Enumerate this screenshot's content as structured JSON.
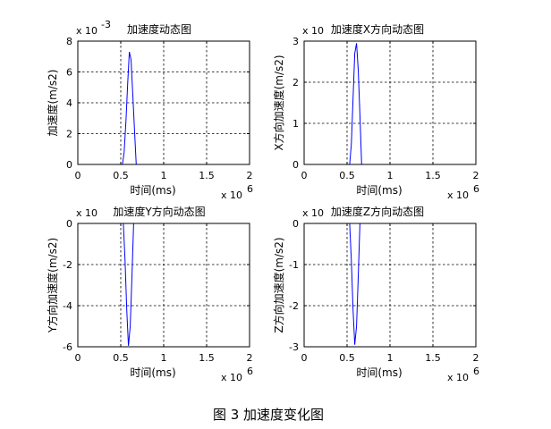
{
  "caption": "图 3  加速度变化图",
  "chart_data": [
    {
      "type": "line",
      "title": "加速度动态图",
      "xlabel": "时间(ms)",
      "ylabel": "加速度(m/s2)",
      "x_multiplier": "x 10",
      "x_exponent": "6",
      "y_multiplier": "x 10",
      "y_exponent": "-3",
      "xlim": [
        0,
        2
      ],
      "ylim": [
        0,
        8
      ],
      "xticks": [
        0,
        0.5,
        1,
        1.5,
        2
      ],
      "yticks": [
        0,
        2,
        4,
        6,
        8
      ],
      "xtick_labels": [
        "0",
        "0.5",
        "1",
        "1.5",
        "2"
      ],
      "ytick_labels": [
        "0",
        "2",
        "4",
        "6",
        "8"
      ],
      "grid": true,
      "color": "#0000ff",
      "series": [
        {
          "x": [
            0,
            0.52,
            0.54,
            0.56,
            0.58,
            0.6,
            0.62,
            0.64,
            0.66,
            0.68,
            2
          ],
          "y": [
            0,
            0,
            0.8,
            2.8,
            5.2,
            7.3,
            6.8,
            4.6,
            2.2,
            0,
            0
          ]
        }
      ]
    },
    {
      "type": "line",
      "title": "加速度X方向动态图",
      "xlabel": "时间(ms)",
      "ylabel": "X方向加速度(m/s2)",
      "x_multiplier": "x 10",
      "x_exponent": "6",
      "y_multiplier": "x 10",
      "y_exponent": "",
      "xlim": [
        0,
        2
      ],
      "ylim": [
        0,
        3
      ],
      "xticks": [
        0,
        0.5,
        1,
        1.5,
        2
      ],
      "yticks": [
        0,
        1,
        2,
        3
      ],
      "xtick_labels": [
        "0",
        "0.5",
        "1",
        "1.5",
        "2"
      ],
      "ytick_labels": [
        "0",
        "1",
        "2",
        "3"
      ],
      "grid": true,
      "color": "#0000ff",
      "series": [
        {
          "x": [
            0,
            0.53,
            0.55,
            0.57,
            0.59,
            0.61,
            0.63,
            0.65,
            0.67,
            2
          ],
          "y": [
            0,
            0,
            0.5,
            1.6,
            2.7,
            2.95,
            2.3,
            1.2,
            0,
            0
          ]
        }
      ]
    },
    {
      "type": "line",
      "title": "加速度Y方向动态图",
      "xlabel": "时间(ms)",
      "ylabel": "Y方向加速度(m/s2)",
      "x_multiplier": "x 10",
      "x_exponent": "6",
      "y_multiplier": "x 10",
      "y_exponent": "",
      "xlim": [
        0,
        2
      ],
      "ylim": [
        -6,
        0
      ],
      "xticks": [
        0,
        0.5,
        1,
        1.5,
        2
      ],
      "yticks": [
        -6,
        -4,
        -2,
        0
      ],
      "xtick_labels": [
        "0",
        "0.5",
        "1",
        "1.5",
        "2"
      ],
      "ytick_labels": [
        "-6",
        "-4",
        "-2",
        "0"
      ],
      "grid": true,
      "color": "#0000ff",
      "series": [
        {
          "x": [
            0,
            0.53,
            0.55,
            0.57,
            0.59,
            0.61,
            0.63,
            0.65,
            2
          ],
          "y": [
            0,
            0,
            -1.8,
            -4.2,
            -5.95,
            -5.0,
            -2.6,
            0,
            0
          ]
        }
      ]
    },
    {
      "type": "line",
      "title": "加速度Z方向动态图",
      "xlabel": "时间(ms)",
      "ylabel": "Z方向加速度(m/s2)",
      "x_multiplier": "x 10",
      "x_exponent": "6",
      "y_multiplier": "x 10",
      "y_exponent": "",
      "xlim": [
        0,
        2
      ],
      "ylim": [
        -3,
        0
      ],
      "xticks": [
        0,
        0.5,
        1,
        1.5,
        2
      ],
      "yticks": [
        -3,
        -2,
        -1,
        0
      ],
      "xtick_labels": [
        "0",
        "0.5",
        "1",
        "1.5",
        "2"
      ],
      "ytick_labels": [
        "-3",
        "-2",
        "-1",
        "0"
      ],
      "grid": true,
      "color": "#0000ff",
      "series": [
        {
          "x": [
            0,
            0.53,
            0.55,
            0.57,
            0.59,
            0.61,
            0.63,
            0.65,
            2
          ],
          "y": [
            0,
            0,
            -0.9,
            -2.1,
            -2.95,
            -2.5,
            -1.3,
            0,
            0
          ]
        }
      ]
    }
  ]
}
